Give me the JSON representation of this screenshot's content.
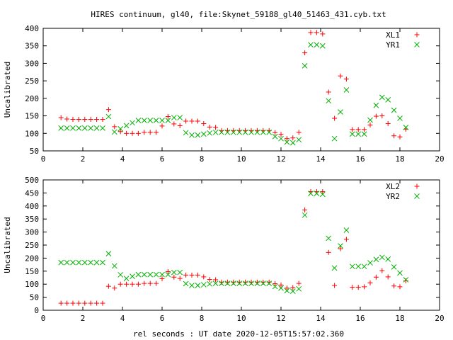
{
  "title": "HIRES continuum, gl40, file:Skynet_59188_gl40_51463_431.cyb.txt",
  "xlabel": "rel seconds : UT date 2020-12-05T15:57:02.360",
  "colors": {
    "red": "#ff0000",
    "green": "#00b000",
    "axis": "#000000"
  },
  "chart_data": [
    {
      "type": "scatter",
      "ylabel": "Uncalibrated",
      "xlim": [
        0,
        20
      ],
      "ylim": [
        50,
        400
      ],
      "xticks": [
        0,
        2,
        4,
        6,
        8,
        10,
        12,
        14,
        16,
        18,
        20
      ],
      "yticks": [
        50,
        100,
        150,
        200,
        250,
        300,
        350,
        400
      ],
      "legend_position": "top-right",
      "series": [
        {
          "name": "XL1",
          "marker": "plus",
          "color": "#ff0000",
          "x": [
            0.9,
            1.2,
            1.5,
            1.8,
            2.1,
            2.4,
            2.7,
            3.0,
            3.3,
            3.6,
            3.9,
            4.2,
            4.5,
            4.8,
            5.1,
            5.4,
            5.7,
            6.0,
            6.3,
            6.6,
            6.9,
            7.2,
            7.5,
            7.8,
            8.1,
            8.4,
            8.7,
            9.0,
            9.3,
            9.6,
            9.9,
            10.2,
            10.5,
            10.8,
            11.1,
            11.4,
            11.7,
            12.0,
            12.3,
            12.6,
            12.9,
            13.2,
            13.5,
            13.8,
            14.1,
            14.4,
            14.7,
            15.0,
            15.3,
            15.6,
            15.9,
            16.2,
            16.5,
            16.8,
            17.1,
            17.4,
            17.7,
            18.0,
            18.3
          ],
          "y": [
            145,
            141,
            140,
            140,
            140,
            140,
            140,
            140,
            168,
            119,
            105,
            100,
            100,
            100,
            103,
            103,
            103,
            121,
            148,
            127,
            122,
            135,
            135,
            135,
            128,
            118,
            117,
            108,
            108,
            108,
            108,
            108,
            108,
            108,
            108,
            108,
            102,
            97,
            85,
            87,
            103,
            330,
            388,
            388,
            384,
            218,
            143,
            264,
            255,
            111,
            111,
            111,
            124,
            149,
            150,
            128,
            93,
            90,
            112
          ]
        },
        {
          "name": "YR1",
          "marker": "cross",
          "color": "#00b000",
          "x": [
            0.9,
            1.2,
            1.5,
            1.8,
            2.1,
            2.4,
            2.7,
            3.0,
            3.3,
            3.6,
            3.9,
            4.2,
            4.5,
            4.8,
            5.1,
            5.4,
            5.7,
            6.0,
            6.3,
            6.6,
            6.9,
            7.2,
            7.5,
            7.8,
            8.1,
            8.4,
            8.7,
            9.0,
            9.3,
            9.6,
            9.9,
            10.2,
            10.5,
            10.8,
            11.1,
            11.4,
            11.7,
            12.0,
            12.3,
            12.6,
            12.9,
            13.2,
            13.5,
            13.8,
            14.1,
            14.4,
            14.7,
            15.0,
            15.3,
            15.6,
            15.9,
            16.2,
            16.5,
            16.8,
            17.1,
            17.4,
            17.7,
            18.0,
            18.3
          ],
          "y": [
            115,
            115,
            115,
            115,
            115,
            115,
            115,
            115,
            148,
            104,
            113,
            122,
            130,
            137,
            137,
            137,
            137,
            137,
            137,
            145,
            145,
            102,
            95,
            95,
            98,
            101,
            103,
            103,
            103,
            103,
            103,
            103,
            103,
            103,
            103,
            103,
            91,
            85,
            75,
            73,
            82,
            293,
            353,
            353,
            350,
            193,
            85,
            161,
            224,
            98,
            98,
            98,
            138,
            180,
            203,
            196,
            166,
            143,
            117
          ]
        }
      ]
    },
    {
      "type": "scatter",
      "ylabel": "Uncalibrated",
      "xlim": [
        0,
        20
      ],
      "ylim": [
        0,
        500
      ],
      "xticks": [
        0,
        2,
        4,
        6,
        8,
        10,
        12,
        14,
        16,
        18,
        20
      ],
      "yticks": [
        0,
        50,
        100,
        150,
        200,
        250,
        300,
        350,
        400,
        450,
        500
      ],
      "legend_position": "top-right",
      "series": [
        {
          "name": "XL2",
          "marker": "plus",
          "color": "#ff0000",
          "x": [
            0.9,
            1.2,
            1.5,
            1.8,
            2.1,
            2.4,
            2.7,
            3.0,
            3.3,
            3.6,
            3.9,
            4.2,
            4.5,
            4.8,
            5.1,
            5.4,
            5.7,
            6.0,
            6.3,
            6.6,
            6.9,
            7.2,
            7.5,
            7.8,
            8.1,
            8.4,
            8.7,
            9.0,
            9.3,
            9.6,
            9.9,
            10.2,
            10.5,
            10.8,
            11.1,
            11.4,
            11.7,
            12.0,
            12.3,
            12.6,
            12.9,
            13.2,
            13.5,
            13.8,
            14.1,
            14.4,
            14.7,
            15.0,
            15.3,
            15.6,
            15.9,
            16.2,
            16.5,
            16.8,
            17.1,
            17.4,
            17.7,
            18.0,
            18.3
          ],
          "y": [
            27,
            27,
            27,
            27,
            27,
            27,
            27,
            27,
            92,
            85,
            100,
            100,
            100,
            100,
            103,
            103,
            103,
            121,
            148,
            127,
            122,
            135,
            135,
            135,
            128,
            118,
            117,
            108,
            108,
            108,
            108,
            108,
            108,
            108,
            108,
            108,
            102,
            97,
            85,
            87,
            103,
            385,
            455,
            455,
            455,
            222,
            95,
            236,
            272,
            88,
            88,
            90,
            105,
            127,
            152,
            128,
            93,
            90,
            113
          ]
        },
        {
          "name": "YR2",
          "marker": "cross",
          "color": "#00b000",
          "x": [
            0.9,
            1.2,
            1.5,
            1.8,
            2.1,
            2.4,
            2.7,
            3.0,
            3.3,
            3.6,
            3.9,
            4.2,
            4.5,
            4.8,
            5.1,
            5.4,
            5.7,
            6.0,
            6.3,
            6.6,
            6.9,
            7.2,
            7.5,
            7.8,
            8.1,
            8.4,
            8.7,
            9.0,
            9.3,
            9.6,
            9.9,
            10.2,
            10.5,
            10.8,
            11.1,
            11.4,
            11.7,
            12.0,
            12.3,
            12.6,
            12.9,
            13.2,
            13.5,
            13.8,
            14.1,
            14.4,
            14.7,
            15.0,
            15.3,
            15.6,
            15.9,
            16.2,
            16.5,
            16.8,
            17.1,
            17.4,
            17.7,
            18.0,
            18.3
          ],
          "y": [
            183,
            183,
            183,
            183,
            183,
            183,
            183,
            183,
            217,
            170,
            136,
            122,
            130,
            137,
            137,
            137,
            137,
            137,
            137,
            145,
            145,
            102,
            95,
            95,
            98,
            101,
            103,
            103,
            103,
            103,
            103,
            103,
            103,
            103,
            103,
            103,
            91,
            85,
            75,
            73,
            82,
            365,
            448,
            448,
            445,
            276,
            162,
            247,
            307,
            168,
            168,
            168,
            182,
            195,
            203,
            196,
            166,
            143,
            117
          ]
        }
      ]
    }
  ]
}
